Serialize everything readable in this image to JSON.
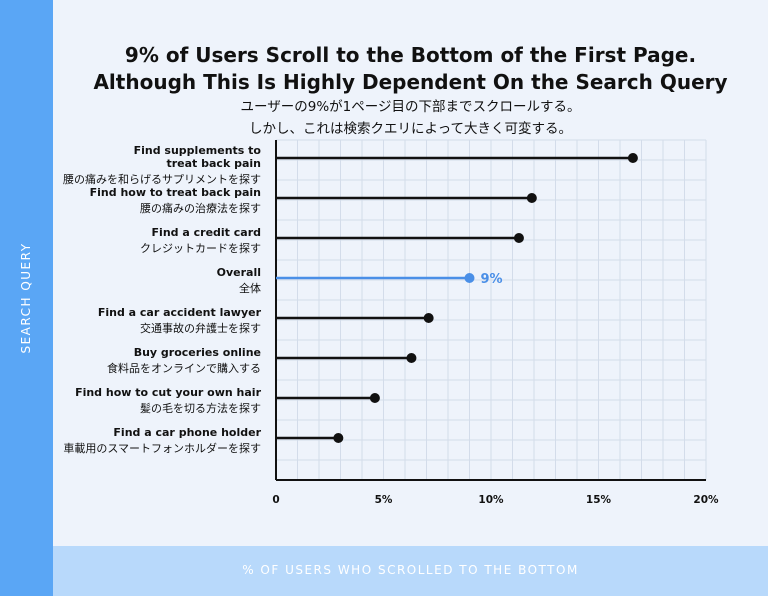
{
  "title_line1": "9% of Users Scroll to the Bottom of the First Page.",
  "title_line2": "Although This Is Highly Dependent On the Search Query",
  "subtitle_line1": "ユーザーの9%が1ページ目の下部までスクロールする。",
  "subtitle_line2": "しかし、これは検索クエリによって大きく可変する。",
  "y_axis_label": "SEARCH QUERY",
  "x_axis_label": "% OF USERS WHO SCROLLED TO THE BOTTOM",
  "colors": {
    "highlight": "#4a8fe7",
    "default": "#111111",
    "band_left": "#5aa6f5",
    "band_bottom": "#b8d9fb"
  },
  "chart_data": {
    "type": "bar",
    "orientation": "horizontal",
    "style": "lollipop",
    "xlim": [
      0,
      20
    ],
    "x_ticks": [
      0,
      5,
      10,
      15,
      20
    ],
    "x_tick_labels": [
      "0",
      "5%",
      "10%",
      "15%",
      "20%"
    ],
    "grid": true,
    "categories": [
      {
        "en_lines": [
          "Find supplements to",
          "treat back pain"
        ],
        "ja": "腰の痛みを和らげるサプリメントを探す",
        "value": 16.6,
        "highlight": false
      },
      {
        "en_lines": [
          "Find how to treat back pain"
        ],
        "ja": "腰の痛みの治療法を探す",
        "value": 11.9,
        "highlight": false
      },
      {
        "en_lines": [
          "Find a credit card"
        ],
        "ja": "クレジットカードを探す",
        "value": 11.3,
        "highlight": false
      },
      {
        "en_lines": [
          "Overall"
        ],
        "ja": "全体",
        "value": 9,
        "highlight": true,
        "label": "9%"
      },
      {
        "en_lines": [
          "Find a car accident lawyer"
        ],
        "ja": "交通事故の弁護士を探す",
        "value": 7.1,
        "highlight": false
      },
      {
        "en_lines": [
          "Buy groceries online"
        ],
        "ja": "食料品をオンラインで購入する",
        "value": 6.3,
        "highlight": false
      },
      {
        "en_lines": [
          "Find how to cut your own hair"
        ],
        "ja": "髪の毛を切る方法を探す",
        "value": 4.6,
        "highlight": false
      },
      {
        "en_lines": [
          "Find a car phone holder"
        ],
        "ja": "車載用のスマートフォンホルダーを探す",
        "value": 2.9,
        "highlight": false
      }
    ]
  }
}
